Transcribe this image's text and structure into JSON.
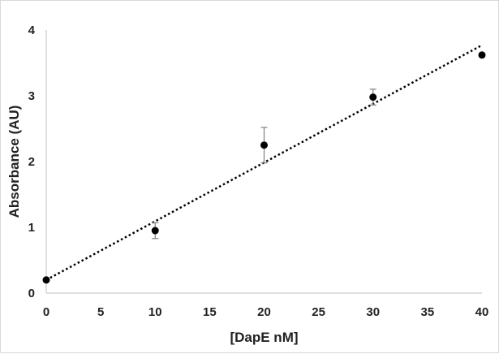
{
  "chart_data": {
    "type": "scatter",
    "title": "",
    "xlabel": "[DapE nM]",
    "ylabel": "Absorbance (AU)",
    "xlim": [
      0,
      40
    ],
    "ylim": [
      0,
      4
    ],
    "x_ticks": [
      0,
      5,
      10,
      15,
      20,
      25,
      30,
      35,
      40
    ],
    "y_ticks": [
      0,
      1,
      2,
      3,
      4
    ],
    "grid": false,
    "legend": "none",
    "series": [
      {
        "x": [
          0,
          10,
          20,
          30,
          40
        ],
        "y": [
          0.2,
          0.95,
          2.25,
          2.98,
          3.62
        ],
        "error_plus": [
          0,
          0.12,
          0.27,
          0.12,
          0
        ],
        "error_minus": [
          0,
          0.12,
          0.27,
          0.12,
          0
        ],
        "marker_color": "#000000",
        "error_bar_color": "#808080"
      }
    ],
    "trendline": {
      "type": "linear",
      "style": "dotted",
      "color": "#000000",
      "x": [
        0,
        40
      ],
      "y": [
        0.2,
        3.77
      ]
    },
    "axis_color": "#bfbfbf"
  }
}
